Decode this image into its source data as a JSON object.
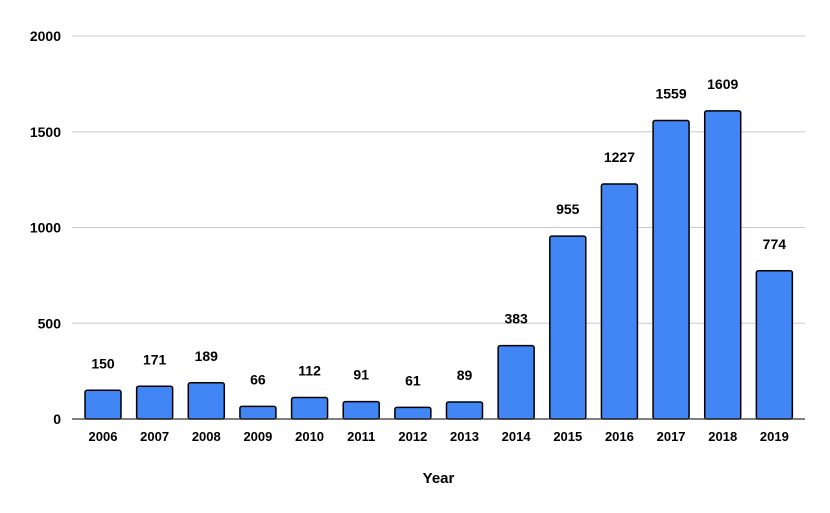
{
  "chart_data": {
    "type": "bar",
    "title": "",
    "xlabel": "Year",
    "ylabel": "",
    "categories": [
      "2006",
      "2007",
      "2008",
      "2009",
      "2010",
      "2011",
      "2012",
      "2013",
      "2014",
      "2015",
      "2016",
      "2017",
      "2018",
      "2019"
    ],
    "values": [
      150,
      171,
      189,
      66,
      112,
      91,
      61,
      89,
      383,
      955,
      1227,
      1559,
      1609,
      774
    ],
    "data_labels": [
      "150",
      "171",
      "189",
      "66",
      "112",
      "91",
      "61",
      "89",
      "383",
      "955",
      "1227",
      "1559",
      "1609",
      "774"
    ],
    "ylim": [
      0,
      2000
    ],
    "yticks": [
      0,
      500,
      1000,
      1500,
      2000
    ],
    "ytick_labels": [
      "0",
      "500",
      "1000",
      "1500",
      "2000"
    ],
    "grid": true,
    "legend": "none",
    "bar_color": "#4285F4",
    "bar_outline_color": "#000000",
    "grid_color": "#cccccc"
  }
}
